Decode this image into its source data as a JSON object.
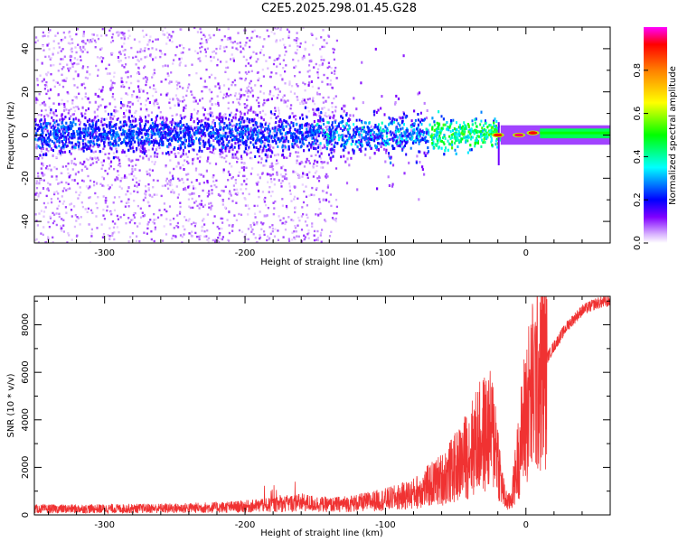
{
  "title": "C2E5.2025.298.01.45.G28",
  "chart_data": [
    {
      "type": "heatmap",
      "xlabel": "Height of straight line (km)",
      "ylabel": "Frequency (Hz)",
      "xlim": [
        -350,
        60
      ],
      "ylim": [
        -50,
        50
      ],
      "xticks": [
        -300,
        -200,
        -100,
        0
      ],
      "yticks": [
        -40,
        -20,
        0,
        20,
        40
      ],
      "colorbar": {
        "label": "Normalized spectral amplitude",
        "range": [
          0,
          1
        ],
        "ticks": [
          "0.0",
          "0.2",
          "0.4",
          "0.6",
          "0.8"
        ],
        "colormap": [
          "#ffffff",
          "#d9b3ff",
          "#8000ff",
          "#0000ff",
          "#00ffff",
          "#00ff00",
          "#ffff00",
          "#ff8000",
          "#ff0000",
          "#ff00ff"
        ]
      },
      "features": [
        {
          "x_range": [
            -350,
            -135
          ],
          "freq_spread_hz": 50,
          "amplitude": 0.1,
          "description_level": "background scatter"
        },
        {
          "x_range": [
            -350,
            -50
          ],
          "freq_band_hz": [
            -8,
            8
          ],
          "amplitude": 0.3
        },
        {
          "x_range": [
            -50,
            -18
          ],
          "freq_band_hz": [
            -6,
            6
          ],
          "amplitude": 0.5
        },
        {
          "x": -20,
          "freq_hz": 0,
          "amplitude": 0.9
        },
        {
          "x": -5,
          "freq_hz": 0,
          "amplitude": 0.95
        },
        {
          "x": 5,
          "freq_hz": 1,
          "amplitude": 0.92
        },
        {
          "x_range": [
            10,
            60
          ],
          "freq_band_hz": [
            -2,
            3
          ],
          "amplitude": 0.5
        }
      ]
    },
    {
      "type": "line",
      "xlabel": "Height of straight line (km)",
      "ylabel": "SNR (10 * v/v)",
      "xlim": [
        -350,
        60
      ],
      "ylim": [
        0,
        9200
      ],
      "xticks": [
        -300,
        -200,
        -100,
        0
      ],
      "yticks": [
        0,
        2000,
        4000,
        6000,
        8000
      ],
      "color": "#f03232",
      "series": [
        {
          "name": "",
          "x": [
            -350,
            -300,
            -250,
            -210,
            -190,
            -175,
            -160,
            -140,
            -120,
            -100,
            -90,
            -80,
            -70,
            -60,
            -50,
            -45,
            -40,
            -35,
            -30,
            -25,
            -22,
            -20,
            -18,
            -15,
            -12,
            -10,
            -5,
            0,
            5,
            10,
            15,
            20,
            30,
            40,
            50,
            60
          ],
          "y": [
            250,
            260,
            280,
            330,
            380,
            450,
            520,
            420,
            500,
            650,
            750,
            900,
            1200,
            1500,
            2000,
            2300,
            2700,
            3100,
            3400,
            3500,
            3300,
            2500,
            1500,
            700,
            500,
            800,
            2600,
            4400,
            5300,
            6200,
            6600,
            7100,
            8000,
            8600,
            8900,
            9000
          ]
        }
      ]
    }
  ]
}
